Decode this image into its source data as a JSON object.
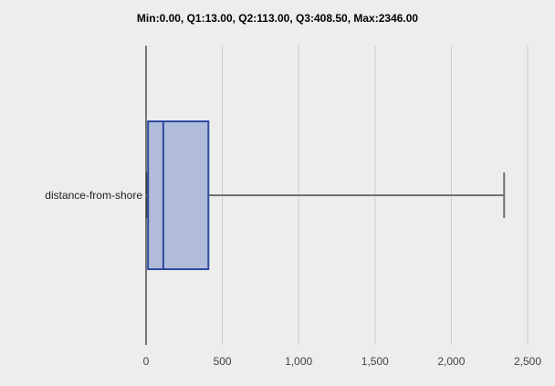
{
  "chart_data": {
    "type": "boxplot",
    "title": "Min:0.00, Q1:13.00, Q2:113.00, Q3:408.50, Max:2346.00",
    "xlabel": "",
    "ylabel": "",
    "orientation": "horizontal",
    "categories": [
      "distance-from-shore"
    ],
    "series": [
      {
        "category": "distance-from-shore",
        "min": 0.0,
        "q1": 13.0,
        "median": 113.0,
        "q3": 408.5,
        "max": 2346.0
      }
    ],
    "xlim": [
      0,
      2500
    ],
    "xticks": [
      0,
      500,
      1000,
      1500,
      2000,
      2500
    ],
    "xtick_labels": [
      "0",
      "500",
      "1,000",
      "1,500",
      "2,000",
      "2,500"
    ],
    "grid": "vertical",
    "legend": "none",
    "colors": {
      "box_fill": "#b1bbda",
      "box_stroke": "#2d4a9f",
      "whisker": "#707070",
      "grid": "#cccccc",
      "axis": "#000000",
      "background": "#ededed"
    }
  }
}
